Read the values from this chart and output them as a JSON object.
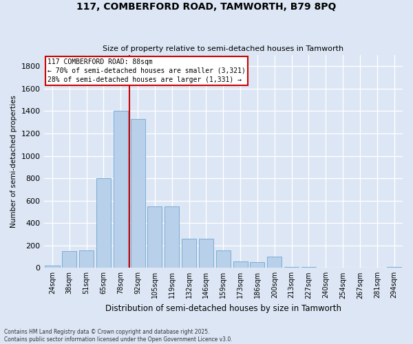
{
  "title_line1": "117, COMBERFORD ROAD, TAMWORTH, B79 8PQ",
  "title_line2": "Size of property relative to semi-detached houses in Tamworth",
  "xlabel": "Distribution of semi-detached houses by size in Tamworth",
  "ylabel": "Number of semi-detached properties",
  "categories": [
    "24sqm",
    "38sqm",
    "51sqm",
    "65sqm",
    "78sqm",
    "92sqm",
    "105sqm",
    "119sqm",
    "132sqm",
    "146sqm",
    "159sqm",
    "173sqm",
    "186sqm",
    "200sqm",
    "213sqm",
    "227sqm",
    "240sqm",
    "254sqm",
    "267sqm",
    "281sqm",
    "294sqm"
  ],
  "values": [
    20,
    150,
    155,
    800,
    1400,
    1330,
    550,
    550,
    260,
    260,
    155,
    55,
    50,
    100,
    10,
    5,
    3,
    3,
    3,
    2,
    10
  ],
  "bar_color": "#b8d0ea",
  "bar_edge_color": "#7aadd4",
  "vline_color": "#cc0000",
  "vline_x_index": 4.5,
  "annotation_text": "117 COMBERFORD ROAD: 88sqm\n← 70% of semi-detached houses are smaller (3,321)\n28% of semi-detached houses are larger (1,331) →",
  "annotation_box_color": "#ffffff",
  "annotation_box_edge": "#cc0000",
  "ylim": [
    0,
    1900
  ],
  "yticks": [
    0,
    200,
    400,
    600,
    800,
    1000,
    1200,
    1400,
    1600,
    1800
  ],
  "background_color": "#dce6f5",
  "grid_color": "#ffffff",
  "footnote": "Contains HM Land Registry data © Crown copyright and database right 2025.\nContains public sector information licensed under the Open Government Licence v3.0."
}
